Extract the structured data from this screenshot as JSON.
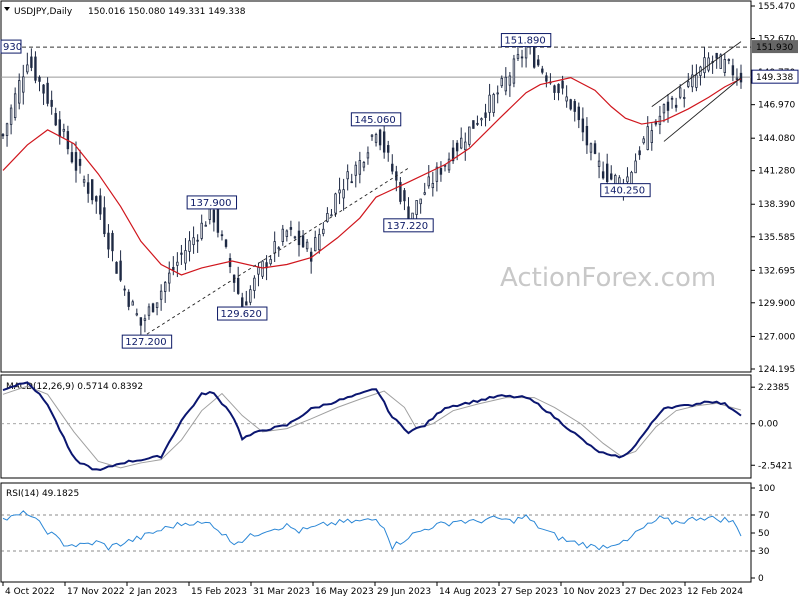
{
  "header": {
    "symbol": "USDJPY,Daily",
    "ohlc": "150.016 150.080 149.331 149.338"
  },
  "watermark": "ActionForex.com",
  "colors": {
    "candle": "#1f2a44",
    "ma": "#d0161d",
    "macd": "#0b1670",
    "signal": "#a0a0a0",
    "rsi": "#2b87d6",
    "annotation_box": "#0d1a66",
    "current_price_box": "#0b1670",
    "resistance_box": "#666666"
  },
  "chart_data": [
    {
      "type": "line",
      "title": "",
      "x_tick_labels": [
        "4 Oct 2022",
        "17 Nov 2022",
        "2 Jan 2023",
        "15 Feb 2023",
        "31 Mar 2023",
        "16 May 2023",
        "29 Jun 2023",
        "14 Aug 2023",
        "27 Sep 2023",
        "10 Nov 2023",
        "27 Dec 2023",
        "12 Feb 2024"
      ],
      "y_tick_labels": [
        "155.470",
        "152.670",
        "149.770",
        "146.970",
        "144.080",
        "141.280",
        "138.390",
        "135.585",
        "132.695",
        "129.900",
        "127.000",
        "124.195"
      ],
      "ylim": [
        124.195,
        155.47
      ],
      "current_price": "149.338",
      "resistance_level": "151.930",
      "resistance_left_label": "930",
      "annotations": [
        {
          "label": "151.890",
          "x": 258,
          "y": 151.89
        },
        {
          "label": "145.060",
          "x": 184,
          "y": 145.06
        },
        {
          "label": "137.900",
          "x": 103,
          "y": 137.9
        },
        {
          "label": "137.220",
          "x": 200,
          "y": 137.22
        },
        {
          "label": "140.250",
          "x": 307,
          "y": 140.25
        },
        {
          "label": "129.620",
          "x": 118,
          "y": 129.62
        },
        {
          "label": "127.200",
          "x": 71,
          "y": 127.2
        }
      ],
      "series": [
        {
          "name": "price",
          "points": [
            [
              0,
              144.3
            ],
            [
              12,
              151.0
            ],
            [
              22,
              147.5
            ],
            [
              35,
              142.0
            ],
            [
              47,
              138.2
            ],
            [
              58,
              131.8
            ],
            [
              68,
              128.0
            ],
            [
              78,
              131.0
            ],
            [
              88,
              134.0
            ],
            [
              98,
              136.5
            ],
            [
              103,
              137.9
            ],
            [
              113,
              132.5
            ],
            [
              118,
              129.62
            ],
            [
              128,
              133.0
            ],
            [
              140,
              136.0
            ],
            [
              152,
              134.2
            ],
            [
              165,
              139.5
            ],
            [
              176,
              142.0
            ],
            [
              184,
              145.06
            ],
            [
              192,
              141.3
            ],
            [
              200,
              137.22
            ],
            [
              208,
              139.5
            ],
            [
              218,
              142.0
            ],
            [
              230,
              144.8
            ],
            [
              245,
              148.2
            ],
            [
              258,
              151.89
            ],
            [
              265,
              150.2
            ],
            [
              280,
              147.0
            ],
            [
              292,
              142.0
            ],
            [
              300,
              140.6
            ],
            [
              307,
              140.25
            ],
            [
              315,
              143.5
            ],
            [
              326,
              146.5
            ],
            [
              338,
              148.5
            ],
            [
              348,
              150.8
            ],
            [
              356,
              150.4
            ],
            [
              364,
              149.34
            ]
          ]
        },
        {
          "name": "moving-average",
          "points": [
            [
              0,
              141.3
            ],
            [
              12,
              143.5
            ],
            [
              22,
              144.8
            ],
            [
              35,
              143.6
            ],
            [
              47,
              141.0
            ],
            [
              58,
              138.2
            ],
            [
              68,
              135.2
            ],
            [
              78,
              133.2
            ],
            [
              88,
              132.3
            ],
            [
              98,
              132.9
            ],
            [
              113,
              133.5
            ],
            [
              128,
              132.9
            ],
            [
              140,
              133.2
            ],
            [
              152,
              133.8
            ],
            [
              165,
              135.5
            ],
            [
              176,
              137.2
            ],
            [
              184,
              139.0
            ],
            [
              200,
              140.3
            ],
            [
              218,
              141.8
            ],
            [
              230,
              143.2
            ],
            [
              245,
              145.8
            ],
            [
              258,
              148.0
            ],
            [
              265,
              148.7
            ],
            [
              280,
              149.3
            ],
            [
              292,
              148.2
            ],
            [
              300,
              146.8
            ],
            [
              307,
              145.8
            ],
            [
              315,
              145.3
            ],
            [
              326,
              145.6
            ],
            [
              338,
              146.6
            ],
            [
              348,
              147.6
            ],
            [
              356,
              148.5
            ],
            [
              364,
              149.2
            ]
          ]
        },
        {
          "name": "channel-lower",
          "points": [
            [
              71,
              127.2
            ],
            [
              200,
              141.5
            ]
          ]
        },
        {
          "name": "channel-upper",
          "points": [
            [
              320,
              146.8
            ],
            [
              364,
              152.4
            ]
          ]
        },
        {
          "name": "channel-lower-2",
          "points": [
            [
              326,
              143.8
            ],
            [
              364,
              149.3
            ]
          ]
        }
      ]
    },
    {
      "type": "line",
      "title": "MACD(12,26,9) 0.5714 0.8392",
      "y_tick_labels": [
        "2.2385",
        "0.00",
        "-2.5421"
      ],
      "ylim": [
        -3.2,
        2.8
      ],
      "series": [
        {
          "name": "macd",
          "points": [
            [
              0,
              2.1
            ],
            [
              12,
              2.6
            ],
            [
              22,
              1.2
            ],
            [
              35,
              -2.2
            ],
            [
              47,
              -2.9
            ],
            [
              58,
              -2.4
            ],
            [
              68,
              -2.2
            ],
            [
              78,
              -2.0
            ],
            [
              88,
              0.2
            ],
            [
              98,
              1.8
            ],
            [
              103,
              1.95
            ],
            [
              113,
              0.6
            ],
            [
              118,
              -0.9
            ],
            [
              128,
              -0.4
            ],
            [
              140,
              -0.1
            ],
            [
              152,
              0.9
            ],
            [
              165,
              1.4
            ],
            [
              176,
              1.8
            ],
            [
              184,
              2.15
            ],
            [
              192,
              0.4
            ],
            [
              200,
              -0.5
            ],
            [
              208,
              -0.1
            ],
            [
              218,
              1.0
            ],
            [
              230,
              1.3
            ],
            [
              245,
              1.7
            ],
            [
              258,
              1.6
            ],
            [
              265,
              1.1
            ],
            [
              280,
              -0.4
            ],
            [
              292,
              -1.6
            ],
            [
              300,
              -2.0
            ],
            [
              307,
              -2.0
            ],
            [
              315,
              -0.8
            ],
            [
              326,
              1.0
            ],
            [
              338,
              1.1
            ],
            [
              348,
              1.4
            ],
            [
              356,
              1.2
            ],
            [
              364,
              0.57
            ]
          ]
        },
        {
          "name": "signal",
          "points": [
            [
              0,
              1.8
            ],
            [
              12,
              2.3
            ],
            [
              22,
              1.8
            ],
            [
              35,
              -0.5
            ],
            [
              47,
              -2.3
            ],
            [
              58,
              -2.7
            ],
            [
              68,
              -2.4
            ],
            [
              78,
              -2.2
            ],
            [
              88,
              -1.0
            ],
            [
              98,
              0.8
            ],
            [
              108,
              1.85
            ],
            [
              118,
              0.5
            ],
            [
              128,
              -0.5
            ],
            [
              140,
              -0.3
            ],
            [
              152,
              0.3
            ],
            [
              165,
              1.0
            ],
            [
              176,
              1.5
            ],
            [
              188,
              2.0
            ],
            [
              198,
              1.0
            ],
            [
              204,
              -0.3
            ],
            [
              212,
              0.0
            ],
            [
              222,
              0.8
            ],
            [
              234,
              1.2
            ],
            [
              248,
              1.6
            ],
            [
              262,
              1.6
            ],
            [
              272,
              1.0
            ],
            [
              285,
              0.0
            ],
            [
              296,
              -1.2
            ],
            [
              305,
              -2.0
            ],
            [
              312,
              -1.7
            ],
            [
              322,
              -0.2
            ],
            [
              332,
              0.8
            ],
            [
              342,
              1.1
            ],
            [
              352,
              1.25
            ],
            [
              364,
              0.84
            ]
          ]
        }
      ]
    },
    {
      "type": "line",
      "title": "RSI(14) 49.1825",
      "y_tick_labels": [
        "100",
        "70",
        "50",
        "30",
        "0"
      ],
      "ylim": [
        0,
        100
      ],
      "reference_levels": [
        70,
        30
      ],
      "series": [
        {
          "name": "rsi",
          "points": [
            [
              0,
              65
            ],
            [
              6,
              68
            ],
            [
              12,
              73
            ],
            [
              15,
              66
            ],
            [
              22,
              52
            ],
            [
              30,
              38
            ],
            [
              38,
              36
            ],
            [
              47,
              40
            ],
            [
              52,
              34
            ],
            [
              58,
              38
            ],
            [
              68,
              45
            ],
            [
              76,
              52
            ],
            [
              84,
              58
            ],
            [
              92,
              62
            ],
            [
              98,
              60
            ],
            [
              103,
              61
            ],
            [
              108,
              50
            ],
            [
              113,
              40
            ],
            [
              118,
              42
            ],
            [
              124,
              48
            ],
            [
              130,
              54
            ],
            [
              140,
              58
            ],
            [
              146,
              52
            ],
            [
              152,
              55
            ],
            [
              160,
              60
            ],
            [
              168,
              62
            ],
            [
              176,
              63
            ],
            [
              184,
              65
            ],
            [
              188,
              58
            ],
            [
              192,
              35
            ],
            [
              196,
              40
            ],
            [
              200,
              46
            ],
            [
              206,
              52
            ],
            [
              212,
              58
            ],
            [
              218,
              60
            ],
            [
              224,
              64
            ],
            [
              232,
              62
            ],
            [
              238,
              65
            ],
            [
              245,
              66
            ],
            [
              250,
              63
            ],
            [
              258,
              68
            ],
            [
              262,
              60
            ],
            [
              268,
              52
            ],
            [
              274,
              45
            ],
            [
              280,
              40
            ],
            [
              286,
              38
            ],
            [
              292,
              34
            ],
            [
              298,
              36
            ],
            [
              303,
              40
            ],
            [
              307,
              38
            ],
            [
              312,
              50
            ],
            [
              318,
              58
            ],
            [
              324,
              66
            ],
            [
              330,
              62
            ],
            [
              338,
              64
            ],
            [
              344,
              68
            ],
            [
              350,
              66
            ],
            [
              356,
              65
            ],
            [
              360,
              62
            ],
            [
              364,
              49.18
            ]
          ]
        }
      ]
    }
  ]
}
